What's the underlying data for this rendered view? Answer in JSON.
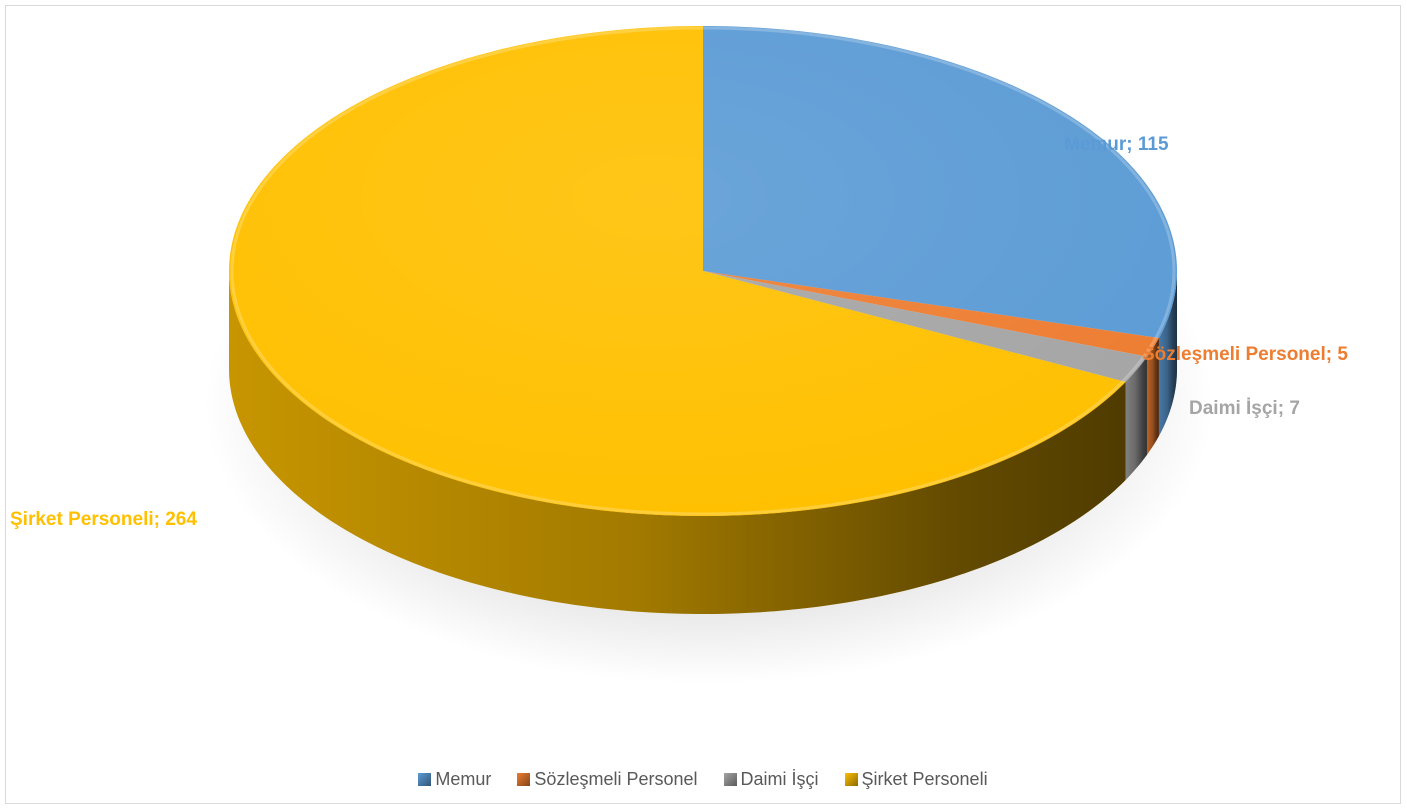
{
  "chart_data": {
    "type": "pie",
    "title": "",
    "series": [
      {
        "name": "Memur",
        "value": 115,
        "color": "#5B9BD5",
        "label": "Memur; 115"
      },
      {
        "name": "Sözleşmeli Personel",
        "value": 5,
        "color": "#ED7D31",
        "label": "Sözleşmeli Personel; 5"
      },
      {
        "name": "Daimi İşçi",
        "value": 7,
        "color": "#A5A5A5",
        "label": "Daimi İşçi; 7"
      },
      {
        "name": "Şirket Personeli",
        "value": 264,
        "color": "#FFC000",
        "label": "Şirket Personeli; 264"
      }
    ],
    "legend_position": "bottom",
    "style": "3d"
  }
}
